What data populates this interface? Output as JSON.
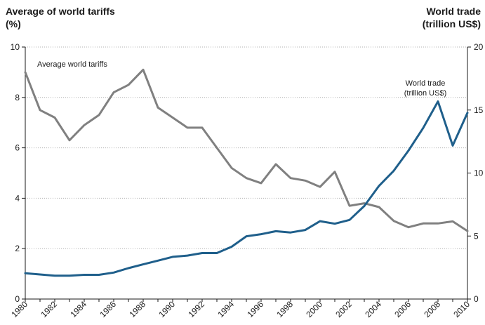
{
  "chart_data": {
    "type": "line",
    "y_left_label": [
      "Average of world tariffs",
      "(%)"
    ],
    "y_right_label": [
      "World trade",
      "(trillion US$)"
    ],
    "ylim_left": [
      0,
      10
    ],
    "ylim_right": [
      0,
      20
    ],
    "yticks_left": [
      0,
      2,
      4,
      6,
      8,
      10
    ],
    "yticks_right": [
      0,
      5,
      10,
      15,
      20
    ],
    "xlim": [
      1980,
      2010
    ],
    "xticks": [
      1980,
      1982,
      1984,
      1986,
      1988,
      1990,
      1992,
      1994,
      1996,
      1998,
      2000,
      2002,
      2004,
      2006,
      2008,
      2010
    ],
    "grid": "horizontal-dotted",
    "x": [
      1980,
      1981,
      1982,
      1983,
      1984,
      1985,
      1986,
      1987,
      1988,
      1989,
      1990,
      1991,
      1992,
      1993,
      1994,
      1995,
      1996,
      1997,
      1998,
      1999,
      2000,
      2001,
      2002,
      2003,
      2004,
      2005,
      2006,
      2007,
      2008,
      2009,
      2010
    ],
    "series": [
      {
        "name": "Average world tariffs",
        "axis": "left",
        "color": "#808080",
        "annotation": [
          "Average world tariffs"
        ],
        "values": [
          9.0,
          7.5,
          7.2,
          6.3,
          6.9,
          7.3,
          8.2,
          8.5,
          9.1,
          7.6,
          7.2,
          6.8,
          6.8,
          6.0,
          5.2,
          4.8,
          4.6,
          5.35,
          4.8,
          4.7,
          4.45,
          5.05,
          3.7,
          3.8,
          3.65,
          3.1,
          2.85,
          3.0,
          3.0,
          3.08,
          2.7
        ]
      },
      {
        "name": "World trade",
        "axis": "right",
        "color": "#1f5f8b",
        "annotation": [
          "World trade",
          "(trillion US$)"
        ],
        "values": [
          2.05,
          1.95,
          1.85,
          1.85,
          1.92,
          1.92,
          2.1,
          2.45,
          2.75,
          3.05,
          3.35,
          3.45,
          3.65,
          3.65,
          4.15,
          4.98,
          5.15,
          5.38,
          5.28,
          5.48,
          6.18,
          5.98,
          6.28,
          7.38,
          8.98,
          10.18,
          11.78,
          13.58,
          15.68,
          12.18,
          14.78
        ]
      }
    ]
  }
}
